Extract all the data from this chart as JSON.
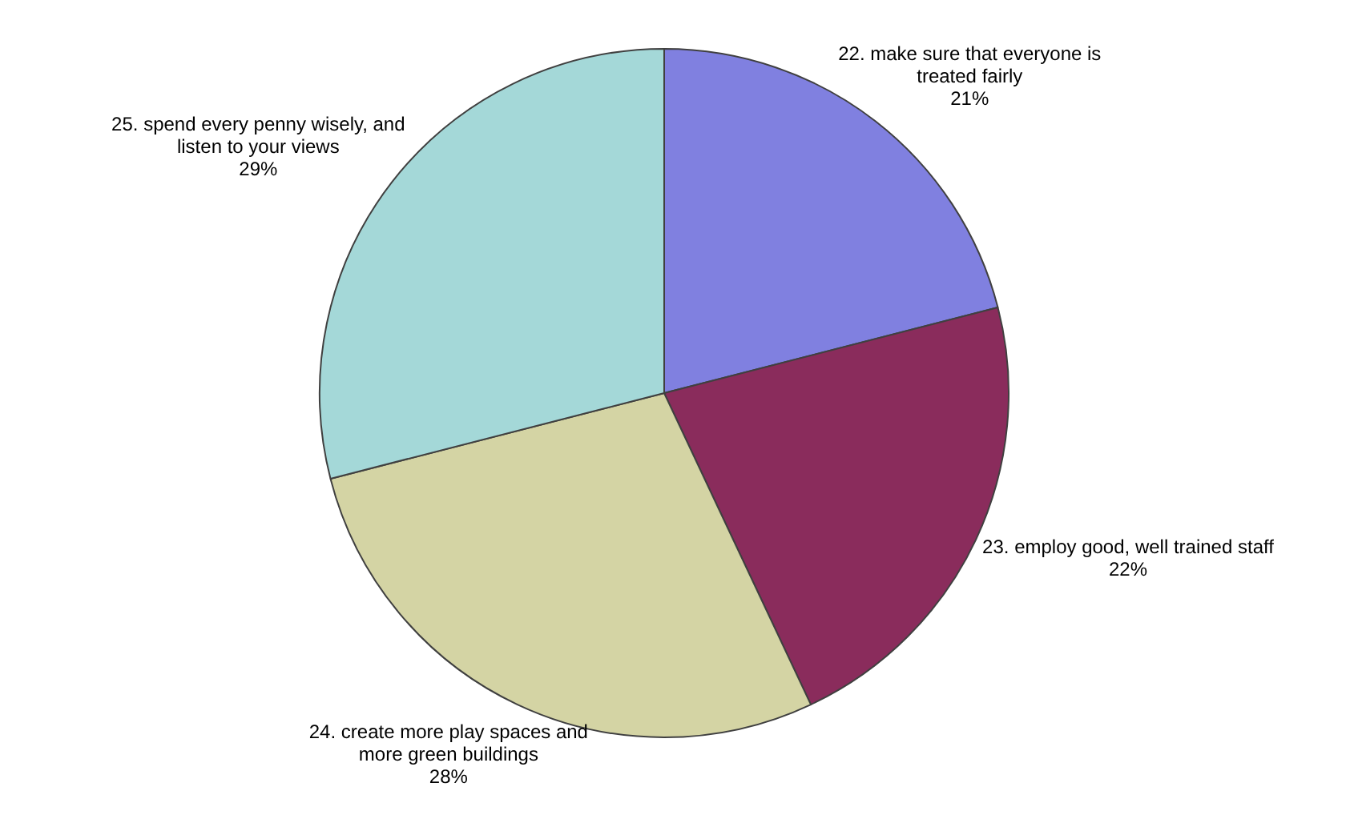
{
  "chart_data": {
    "type": "pie",
    "categories": [
      "22. make sure that everyone is treated fairly",
      "23. employ good, well trained staff",
      "24. create more play spaces and more green buildings",
      "25. spend every penny wisely, and listen to your views"
    ],
    "values": [
      21,
      22,
      28,
      29
    ],
    "value_labels": [
      "21%",
      "22%",
      "28%",
      "29%"
    ],
    "colors": [
      "#8080e0",
      "#8a2c5c",
      "#d4d4a4",
      "#a4d8d8"
    ],
    "legend": false
  }
}
